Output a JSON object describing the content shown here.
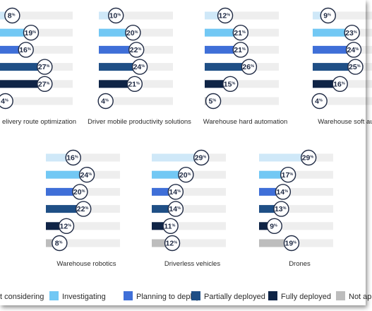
{
  "colors": {
    "Not considering": "#cfe8f8",
    "Investigating": "#72c8f4",
    "Planning to deploy": "#3f6fd8",
    "Partially deployed": "#1f4f86",
    "Fully deployed": "#0f2446",
    "Not applicable": "#bdbdbd",
    "track": "#eeeeee",
    "circle_stroke": "#1f2a44"
  },
  "legend": {
    "items": [
      {
        "label": "t considering",
        "series": "Not considering"
      },
      {
        "label": "Investigating",
        "series": "Investigating"
      },
      {
        "label": "Planning to deploy",
        "series": "Planning to deploy"
      },
      {
        "label": "Partially deployed",
        "series": "Partially deployed"
      },
      {
        "label": "Fully deployed",
        "series": "Fully deployed"
      },
      {
        "label": "Not app",
        "series": "Not applicable"
      }
    ]
  },
  "chart_data": [
    {
      "type": "bar",
      "title": "elivery route optimization",
      "categories": [
        "Not considering",
        "Investigating",
        "Planning to deploy",
        "Partially deployed",
        "Fully deployed",
        "Not applicable"
      ],
      "values": [
        8,
        19,
        16,
        27,
        27,
        4
      ],
      "xlim": [
        0,
        100
      ]
    },
    {
      "type": "bar",
      "title": "Driver mobile productivity solutions",
      "categories": [
        "Not considering",
        "Investigating",
        "Planning to deploy",
        "Partially deployed",
        "Fully deployed",
        "Not applicable"
      ],
      "values": [
        10,
        20,
        22,
        24,
        21,
        4
      ],
      "xlim": [
        0,
        100
      ]
    },
    {
      "type": "bar",
      "title": "Warehouse hard automation",
      "categories": [
        "Not considering",
        "Investigating",
        "Planning to deploy",
        "Partially deployed",
        "Fully deployed",
        "Not applicable"
      ],
      "values": [
        12,
        21,
        21,
        26,
        15,
        5
      ],
      "xlim": [
        0,
        100
      ]
    },
    {
      "type": "bar",
      "title": "Warehouse soft automa",
      "categories": [
        "Not considering",
        "Investigating",
        "Planning to deploy",
        "Partially deployed",
        "Fully deployed",
        "Not applicable"
      ],
      "values": [
        9,
        23,
        24,
        25,
        16,
        4
      ],
      "xlim": [
        0,
        100
      ]
    },
    {
      "type": "bar",
      "title": "Warehouse robotics",
      "categories": [
        "Not considering",
        "Investigating",
        "Planning to deploy",
        "Partially deployed",
        "Fully deployed",
        "Not applicable"
      ],
      "values": [
        16,
        24,
        20,
        22,
        12,
        8
      ],
      "xlim": [
        0,
        100
      ]
    },
    {
      "type": "bar",
      "title": "Driverless vehicles",
      "categories": [
        "Not considering",
        "Investigating",
        "Planning to deploy",
        "Partially deployed",
        "Fully deployed",
        "Not applicable"
      ],
      "values": [
        29,
        20,
        14,
        14,
        11,
        12
      ],
      "xlim": [
        0,
        100
      ]
    },
    {
      "type": "bar",
      "title": "Drones",
      "categories": [
        "Not considering",
        "Investigating",
        "Planning to deploy",
        "Partially deployed",
        "Fully deployed",
        "Not applicable"
      ],
      "values": [
        29,
        17,
        14,
        13,
        9,
        19
      ],
      "xlim": [
        0,
        100
      ]
    }
  ]
}
